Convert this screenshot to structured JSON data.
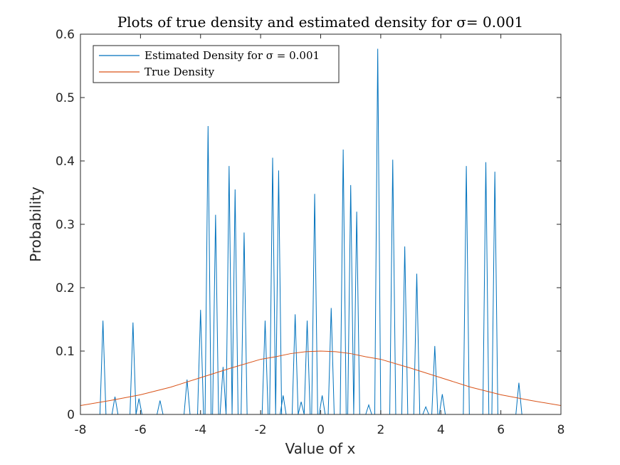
{
  "chart_data": {
    "type": "line",
    "title": "Plots of true density and estimated density for σ= 0.001",
    "xlabel": "Value of x",
    "ylabel": "Probability",
    "xlim": [
      -8,
      8
    ],
    "ylim": [
      0,
      0.6
    ],
    "xticks": [
      "-8",
      "-6",
      "-4",
      "-2",
      "0",
      "2",
      "4",
      "6",
      "8"
    ],
    "yticks": [
      "0",
      "0.1",
      "0.2",
      "0.3",
      "0.4",
      "0.5",
      "0.6"
    ],
    "grid": false,
    "legend_position": "top-left",
    "series": [
      {
        "name": "Estimated Density for σ = 0.001",
        "color": "#0072BD",
        "peaks": [
          [
            -7.25,
            0.148
          ],
          [
            -6.85,
            0.028
          ],
          [
            -6.25,
            0.145
          ],
          [
            -6.05,
            0.025
          ],
          [
            -5.35,
            0.022
          ],
          [
            -4.45,
            0.055
          ],
          [
            -4.0,
            0.165
          ],
          [
            -3.75,
            0.455
          ],
          [
            -3.5,
            0.315
          ],
          [
            -3.25,
            0.075
          ],
          [
            -3.05,
            0.392
          ],
          [
            -2.85,
            0.355
          ],
          [
            -2.55,
            0.287
          ],
          [
            -1.85,
            0.148
          ],
          [
            -1.6,
            0.405
          ],
          [
            -1.4,
            0.385
          ],
          [
            -1.25,
            0.03
          ],
          [
            -0.85,
            0.158
          ],
          [
            -0.65,
            0.02
          ],
          [
            -0.45,
            0.148
          ],
          [
            -0.2,
            0.348
          ],
          [
            0.05,
            0.03
          ],
          [
            0.35,
            0.168
          ],
          [
            0.75,
            0.418
          ],
          [
            1.0,
            0.362
          ],
          [
            1.2,
            0.32
          ],
          [
            1.6,
            0.015
          ],
          [
            1.9,
            0.577
          ],
          [
            2.4,
            0.402
          ],
          [
            2.8,
            0.265
          ],
          [
            3.2,
            0.222
          ],
          [
            3.5,
            0.012
          ],
          [
            3.8,
            0.108
          ],
          [
            4.05,
            0.032
          ],
          [
            4.85,
            0.392
          ],
          [
            5.5,
            0.398
          ],
          [
            5.8,
            0.383
          ],
          [
            6.6,
            0.05
          ]
        ],
        "baseline": 0.0
      },
      {
        "name": "True Density",
        "color": "#D95319",
        "x": [
          -8,
          -7,
          -6,
          -5,
          -4,
          -3,
          -2,
          -1.5,
          -1,
          -0.5,
          0,
          0.5,
          1,
          1.5,
          2,
          3,
          4,
          5,
          6,
          7,
          8
        ],
        "values": [
          0.014,
          0.022,
          0.031,
          0.043,
          0.058,
          0.073,
          0.087,
          0.091,
          0.096,
          0.099,
          0.1,
          0.099,
          0.096,
          0.091,
          0.087,
          0.073,
          0.058,
          0.043,
          0.031,
          0.022,
          0.014
        ]
      }
    ]
  }
}
